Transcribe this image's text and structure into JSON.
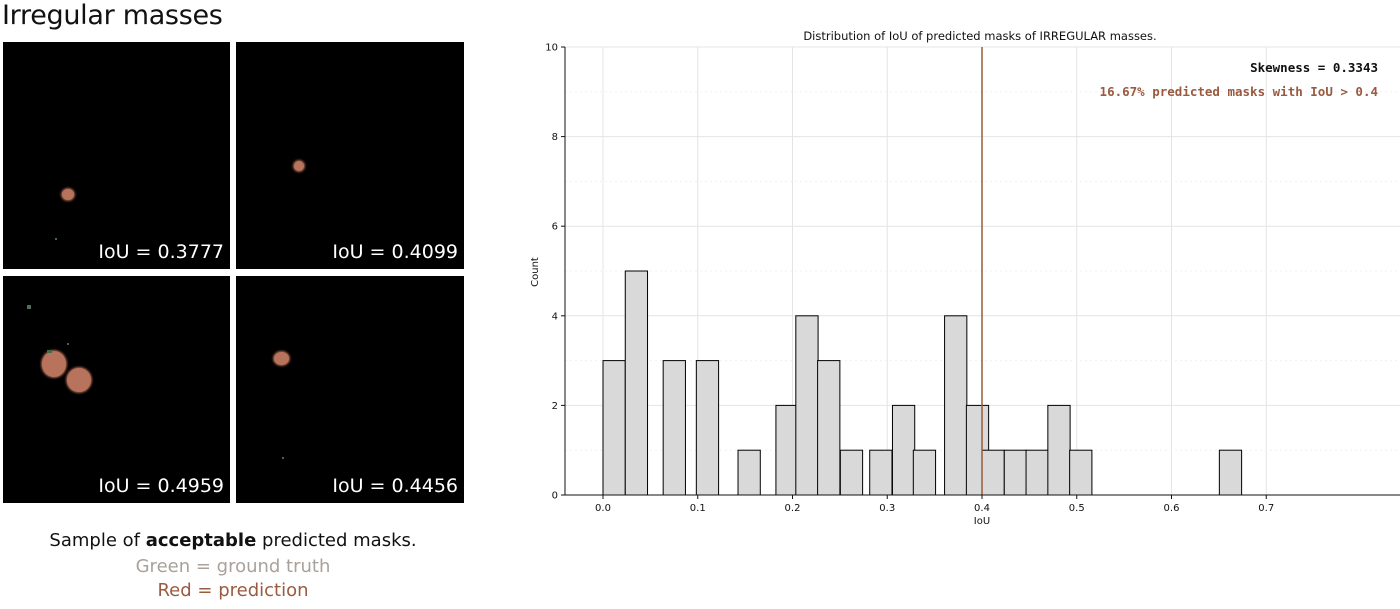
{
  "left_panel": {
    "heading": "Irregular masses",
    "tiles": [
      {
        "iou_text": "IoU = 0.3777"
      },
      {
        "iou_text": "IoU = 0.4099"
      },
      {
        "iou_text": "IoU = 0.4959"
      },
      {
        "iou_text": "IoU = 0.4456"
      }
    ],
    "caption_prefix": "Sample of ",
    "caption_bold": "acceptable",
    "caption_suffix": " predicted masks.",
    "green_label": "Green = ground truth",
    "red_label": "Red = prediction",
    "colors": {
      "green_label": "#a9a19b",
      "red_label": "#9a5a3f",
      "mask": "#b8735c"
    }
  },
  "chart_data": {
    "type": "bar",
    "title": "Distribution of IoU of predicted masks of IRREGULAR masses.",
    "xlabel": "IoU",
    "ylabel": "Count",
    "xlim": [
      -0.04,
      0.82
    ],
    "ylim": [
      0,
      10
    ],
    "xticks": [
      0.0,
      0.1,
      0.2,
      0.3,
      0.4,
      0.5,
      0.6,
      0.7
    ],
    "xtick_labels": [
      "0.0",
      "0.1",
      "0.2",
      "0.3",
      "0.4",
      "0.5",
      "0.6",
      "0.7"
    ],
    "yticks": [
      0,
      2,
      4,
      6,
      8,
      10
    ],
    "ytick_labels": [
      "0",
      "2",
      "4",
      "6",
      "8",
      "10"
    ],
    "bin_width": 0.0235,
    "bins": [
      {
        "x": 0.0,
        "count": 3
      },
      {
        "x": 0.0235,
        "count": 5
      },
      {
        "x": 0.0635,
        "count": 3
      },
      {
        "x": 0.0985,
        "count": 3
      },
      {
        "x": 0.1425,
        "count": 1
      },
      {
        "x": 0.1825,
        "count": 2
      },
      {
        "x": 0.2035,
        "count": 4
      },
      {
        "x": 0.2265,
        "count": 3
      },
      {
        "x": 0.2505,
        "count": 1
      },
      {
        "x": 0.2815,
        "count": 1
      },
      {
        "x": 0.3055,
        "count": 2
      },
      {
        "x": 0.3275,
        "count": 1
      },
      {
        "x": 0.3605,
        "count": 4
      },
      {
        "x": 0.3835,
        "count": 2
      },
      {
        "x": 0.4,
        "count": 1
      },
      {
        "x": 0.4235,
        "count": 1
      },
      {
        "x": 0.4465,
        "count": 1
      },
      {
        "x": 0.4695,
        "count": 2
      },
      {
        "x": 0.4925,
        "count": 1
      },
      {
        "x": 0.6505,
        "count": 1
      }
    ],
    "threshold": 0.4,
    "grid": true,
    "annotations": {
      "skewness": "Skewness = 0.3343",
      "percent": "16.67% predicted masks with IoU > 0.4"
    },
    "colors": {
      "bar_fill": "#d9d9d9",
      "bar_edge": "#000000",
      "threshold_line": "#9a5a3f",
      "percent_text": "#9a5a3f"
    }
  }
}
